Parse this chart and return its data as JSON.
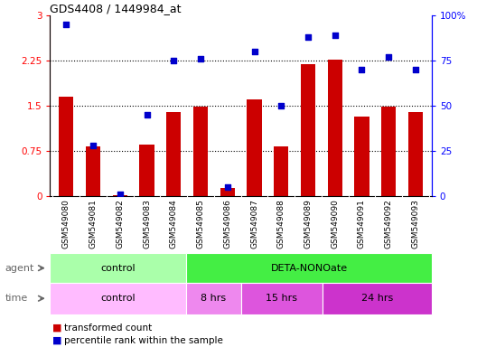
{
  "title": "GDS4408 / 1449984_at",
  "samples": [
    "GSM549080",
    "GSM549081",
    "GSM549082",
    "GSM549083",
    "GSM549084",
    "GSM549085",
    "GSM549086",
    "GSM549087",
    "GSM549088",
    "GSM549089",
    "GSM549090",
    "GSM549091",
    "GSM549092",
    "GSM549093"
  ],
  "transformed_count": [
    1.65,
    0.82,
    0.02,
    0.85,
    1.4,
    1.48,
    0.13,
    1.6,
    0.82,
    2.2,
    2.27,
    1.32,
    1.48,
    1.4
  ],
  "percentile_rank": [
    95,
    28,
    1,
    45,
    75,
    76,
    5,
    80,
    50,
    88,
    89,
    70,
    77,
    70
  ],
  "ylim_left": [
    0,
    3
  ],
  "ylim_right": [
    0,
    100
  ],
  "yticks_left": [
    0,
    0.75,
    1.5,
    2.25,
    3
  ],
  "yticks_right": [
    0,
    25,
    50,
    75,
    100
  ],
  "ytick_labels_left": [
    "0",
    "0.75",
    "1.5",
    "2.25",
    "3"
  ],
  "ytick_labels_right": [
    "0",
    "25",
    "50",
    "75",
    "100%"
  ],
  "bar_color": "#cc0000",
  "dot_color": "#0000cc",
  "agent_control_color": "#aaffaa",
  "agent_deta_color": "#44ee44",
  "time_control_color": "#ffbbff",
  "time_8hrs_color": "#ee88ee",
  "time_15hrs_color": "#dd55dd",
  "time_24hrs_color": "#cc33cc",
  "agent_control_label": "control",
  "agent_deta_label": "DETA-NONOate",
  "time_control_label": "control",
  "time_8hrs_label": "8 hrs",
  "time_15hrs_label": "15 hrs",
  "time_24hrs_label": "24 hrs",
  "control_n": 5,
  "deta_8hrs_n": 2,
  "deta_15hrs_n": 3,
  "deta_24hrs_n": 4,
  "legend_bar_label": "transformed count",
  "legend_dot_label": "percentile rank within the sample",
  "gridline_color": "#000000",
  "background_color": "#ffffff",
  "tick_area_color": "#c8c8c8"
}
